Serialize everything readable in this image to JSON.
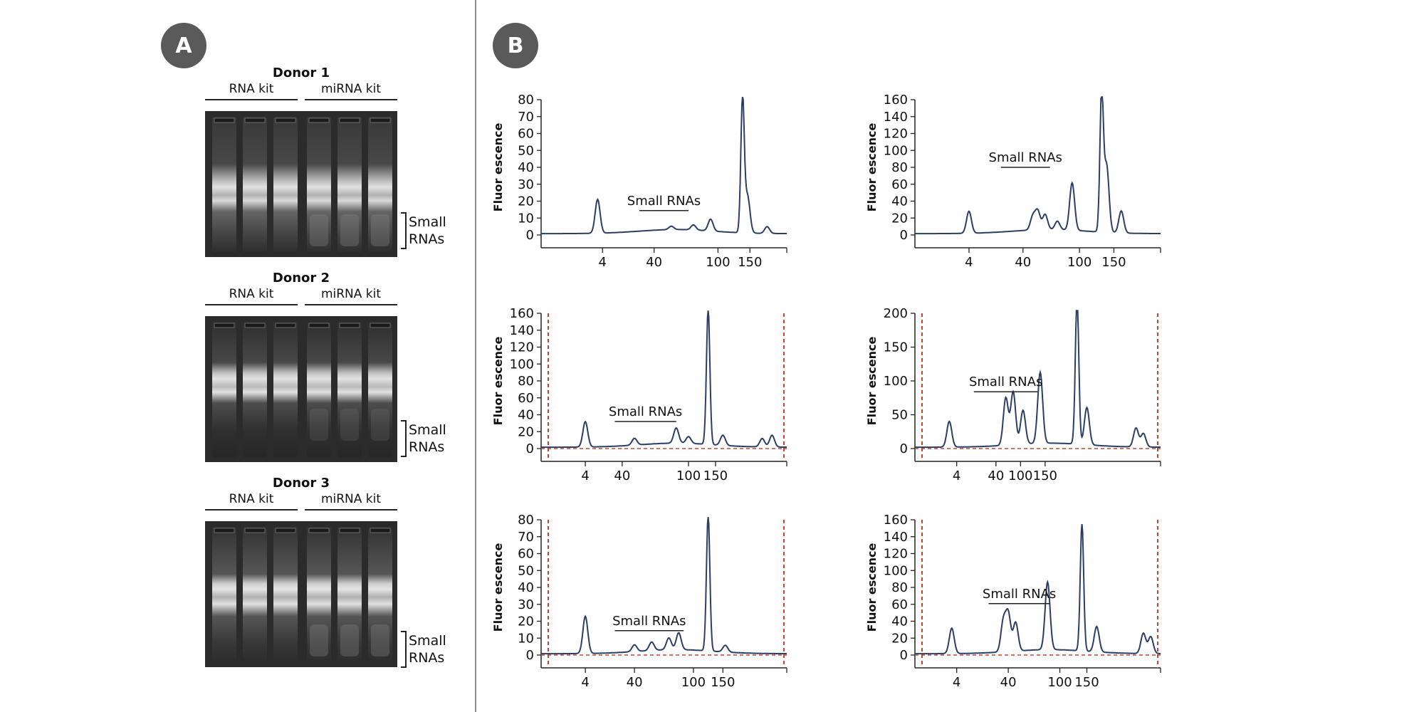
{
  "panels": {
    "a_label": "A",
    "b_label": "B"
  },
  "gels": [
    {
      "donor": "Donor 1",
      "kit_left": "RNA kit",
      "kit_right": "miRNA kit",
      "small_rnas": [
        "Small",
        "RNAs"
      ]
    },
    {
      "donor": "Donor 2",
      "kit_left": "RNA kit",
      "kit_right": "miRNA kit",
      "small_rnas": [
        "Small",
        "RNAs"
      ]
    },
    {
      "donor": "Donor 3",
      "kit_left": "RNA kit",
      "kit_right": "miRNA kit",
      "small_rnas": [
        "Small",
        "RNAs"
      ]
    }
  ],
  "colors": {
    "trace": "#2c3e66",
    "cutoff": "#c8452e",
    "gel_bg": "#2b2b2b"
  },
  "chart_data": [
    {
      "type": "line",
      "ylabel": "Fluor escence",
      "annotation": "Small RNAs",
      "ylim": [
        0,
        80
      ],
      "yticks": [
        0,
        10,
        20,
        30,
        40,
        50,
        60,
        70,
        80
      ],
      "xticks": [
        "4",
        "40",
        "100",
        "150"
      ],
      "cutoff_lines": false,
      "series": [
        {
          "peaks": [
            {
              "x": 0.23,
              "h": 20
            },
            {
              "x": 0.53,
              "h": 2
            },
            {
              "x": 0.62,
              "h": 3
            },
            {
              "x": 0.69,
              "h": 7
            },
            {
              "x": 0.82,
              "h": 79
            },
            {
              "x": 0.84,
              "h": 22
            },
            {
              "x": 0.92,
              "h": 4
            }
          ]
        }
      ]
    },
    {
      "type": "line",
      "ylabel": "Fluor escence",
      "annotation": "Small RNAs",
      "ylim": [
        0,
        160
      ],
      "yticks": [
        0,
        20,
        40,
        60,
        80,
        100,
        120,
        140,
        160
      ],
      "xticks": [
        "4",
        "40",
        "100",
        "150"
      ],
      "cutoff_lines": false,
      "series": [
        {
          "peaks": [
            {
              "x": 0.22,
              "h": 26
            },
            {
              "x": 0.48,
              "h": 16
            },
            {
              "x": 0.5,
              "h": 22
            },
            {
              "x": 0.53,
              "h": 18
            },
            {
              "x": 0.58,
              "h": 10
            },
            {
              "x": 0.64,
              "h": 56
            },
            {
              "x": 0.76,
              "h": 162
            },
            {
              "x": 0.78,
              "h": 80
            },
            {
              "x": 0.84,
              "h": 26
            }
          ]
        }
      ]
    },
    {
      "type": "line",
      "ylabel": "Fluor escence",
      "annotation": "Small RNAs",
      "ylim": [
        0,
        160
      ],
      "yticks": [
        0,
        20,
        40,
        60,
        80,
        100,
        120,
        140,
        160
      ],
      "xticks": [
        "4",
        "40",
        "100",
        "150"
      ],
      "cutoff_lines": true,
      "series": [
        {
          "peaks": [
            {
              "x": 0.18,
              "h": 30
            },
            {
              "x": 0.38,
              "h": 8
            },
            {
              "x": 0.55,
              "h": 18
            },
            {
              "x": 0.6,
              "h": 8
            },
            {
              "x": 0.68,
              "h": 160
            },
            {
              "x": 0.74,
              "h": 12
            },
            {
              "x": 0.9,
              "h": 10
            },
            {
              "x": 0.94,
              "h": 14
            }
          ]
        }
      ]
    },
    {
      "type": "line",
      "ylabel": "Fluor escence",
      "annotation": "Small RNAs",
      "ylim": [
        0,
        200
      ],
      "yticks": [
        0,
        50,
        100,
        150,
        200
      ],
      "xticks": [
        "4",
        "40",
        "100",
        "150"
      ],
      "cutoff_lines": true,
      "series": [
        {
          "peaks": [
            {
              "x": 0.14,
              "h": 38
            },
            {
              "x": 0.37,
              "h": 70
            },
            {
              "x": 0.4,
              "h": 78
            },
            {
              "x": 0.44,
              "h": 50
            },
            {
              "x": 0.51,
              "h": 105
            },
            {
              "x": 0.66,
              "h": 218
            },
            {
              "x": 0.7,
              "h": 55
            },
            {
              "x": 0.9,
              "h": 28
            },
            {
              "x": 0.93,
              "h": 20
            }
          ]
        }
      ]
    },
    {
      "type": "line",
      "ylabel": "Fluor escence",
      "annotation": "Small RNAs",
      "ylim": [
        0,
        80
      ],
      "yticks": [
        0,
        10,
        20,
        30,
        40,
        50,
        60,
        70,
        80
      ],
      "xticks": [
        "4",
        "40",
        "100",
        "150"
      ],
      "cutoff_lines": true,
      "series": [
        {
          "peaks": [
            {
              "x": 0.18,
              "h": 22
            },
            {
              "x": 0.38,
              "h": 4
            },
            {
              "x": 0.45,
              "h": 5
            },
            {
              "x": 0.52,
              "h": 7
            },
            {
              "x": 0.56,
              "h": 10
            },
            {
              "x": 0.68,
              "h": 80
            },
            {
              "x": 0.75,
              "h": 4
            }
          ]
        }
      ]
    },
    {
      "type": "line",
      "ylabel": "Fluor escence",
      "annotation": "Small RNAs",
      "ylim": [
        0,
        160
      ],
      "yticks": [
        0,
        20,
        40,
        60,
        80,
        100,
        120,
        140,
        160
      ],
      "xticks": [
        "4",
        "40",
        "100",
        "150"
      ],
      "cutoff_lines": true,
      "series": [
        {
          "peaks": [
            {
              "x": 0.15,
              "h": 30
            },
            {
              "x": 0.36,
              "h": 36
            },
            {
              "x": 0.38,
              "h": 44
            },
            {
              "x": 0.41,
              "h": 34
            },
            {
              "x": 0.54,
              "h": 80
            },
            {
              "x": 0.68,
              "h": 150
            },
            {
              "x": 0.74,
              "h": 30
            },
            {
              "x": 0.93,
              "h": 24
            },
            {
              "x": 0.96,
              "h": 20
            }
          ]
        }
      ]
    }
  ]
}
